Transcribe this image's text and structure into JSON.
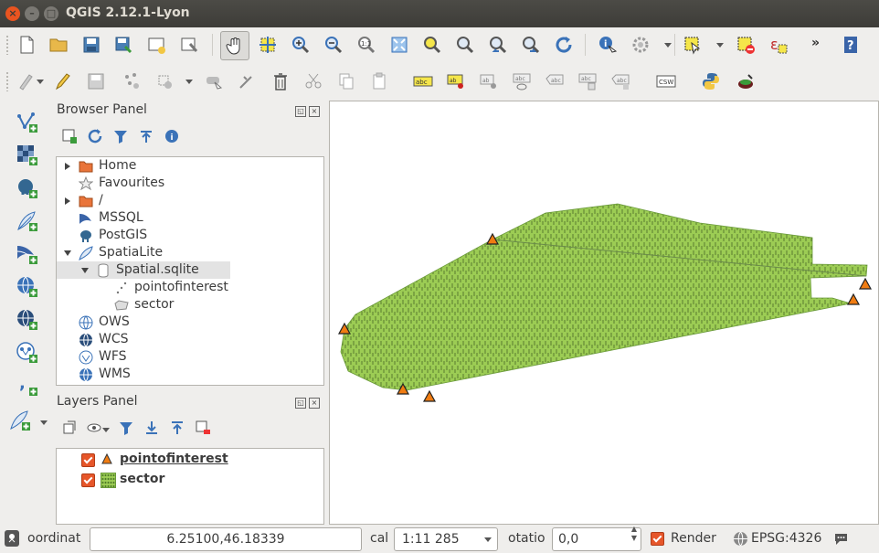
{
  "window": {
    "title": "QGIS 2.12.1-Lyon",
    "close_glyph": "×",
    "min_glyph": "–",
    "max_glyph": "□"
  },
  "toolbar_more": "»",
  "browser_panel": {
    "title": "Browser Panel",
    "items": [
      {
        "label": "Home",
        "icon": "folder-icon",
        "expander": "collapsed"
      },
      {
        "label": "Favourites",
        "icon": "star-icon",
        "expander": "none"
      },
      {
        "label": "/",
        "icon": "folder-icon",
        "expander": "collapsed"
      },
      {
        "label": "MSSQL",
        "icon": "mssql-icon",
        "expander": "none"
      },
      {
        "label": "PostGIS",
        "icon": "postgis-elephant-icon",
        "expander": "none"
      },
      {
        "label": "SpatiaLite",
        "icon": "spatialite-feather-icon",
        "expander": "expanded"
      },
      {
        "label": "Spatial.sqlite",
        "icon": "database-icon",
        "expander": "expanded",
        "selected": true
      },
      {
        "label": "pointofinterest",
        "icon": "point-layer-icon",
        "expander": "none"
      },
      {
        "label": "sector",
        "icon": "polygon-layer-icon",
        "expander": "none"
      },
      {
        "label": "OWS",
        "icon": "globe-icon",
        "expander": "none"
      },
      {
        "label": "WCS",
        "icon": "wcs-globe-icon",
        "expander": "none"
      },
      {
        "label": "WFS",
        "icon": "wfs-globe-icon",
        "expander": "none"
      },
      {
        "label": "WMS",
        "icon": "wms-globe-icon",
        "expander": "none"
      }
    ]
  },
  "layers_panel": {
    "title": "Layers Panel",
    "layers": [
      {
        "label": "pointofinterest",
        "checked": true,
        "active": true,
        "symbol": "triangle",
        "color": "#f07c12"
      },
      {
        "label": "sector",
        "checked": true,
        "active": false,
        "symbol": "fill",
        "color": "#9ccc54"
      }
    ]
  },
  "map": {
    "fill_color": "#9ccc54",
    "point_color": "#f07c12"
  },
  "statusbar": {
    "coordinate_label": "oordinat",
    "coordinate_value": "6.25100,46.18339",
    "scale_label": "cal",
    "scale_value": "1:11 285",
    "rotation_label": "otatio",
    "rotation_value": "0,0",
    "render_label": "Render",
    "render_checked": true,
    "crs": "EPSG:4326"
  },
  "colors": {
    "accent": "#e6562a",
    "selection": "#e3e3e3"
  }
}
